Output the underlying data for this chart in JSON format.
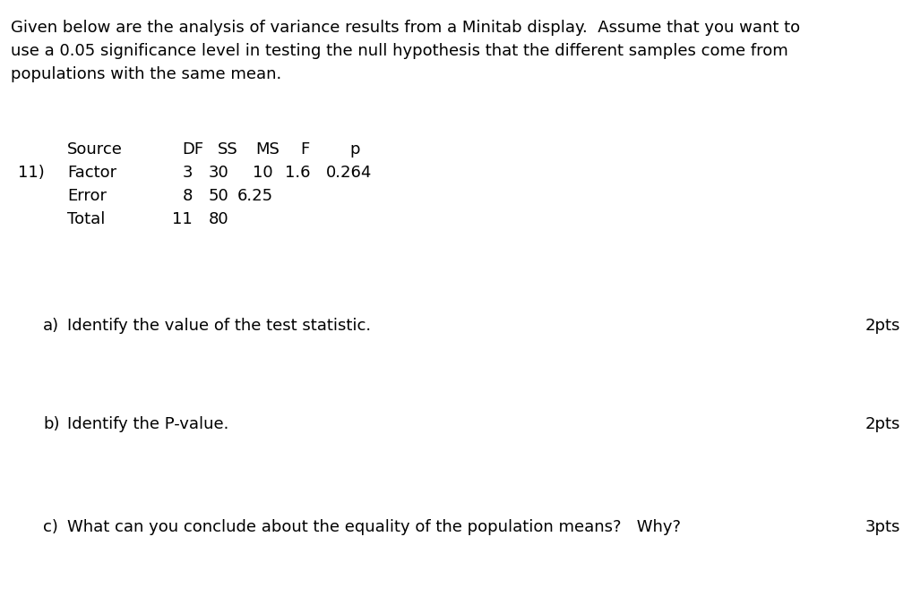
{
  "background_color": "#ffffff",
  "intro_lines": [
    "Given below are the analysis of variance results from a Minitab display.  Assume that you want to",
    "use a 0.05 significance level in testing the null hypothesis that the different samples come from",
    "populations with the same mean."
  ],
  "problem_number": "11)",
  "table_header_labels": [
    "Source",
    "DF",
    "SS",
    "MS",
    "F",
    "p"
  ],
  "table_rows": [
    [
      "Factor",
      "3",
      "30",
      "10",
      "1.6",
      "0.264"
    ],
    [
      "Error",
      "8",
      "50",
      "6.25",
      "",
      ""
    ],
    [
      "Total",
      "11",
      "80",
      "",
      "",
      ""
    ]
  ],
  "questions": [
    {
      "label": "a)",
      "text": "Identify the value of the test statistic.",
      "points": "2pts"
    },
    {
      "label": "b)",
      "text": "Identify the P-value.",
      "points": "2pts"
    },
    {
      "label": "c)",
      "text": "What can you conclude about the equality of the population means?   Why?",
      "points": "3pts"
    }
  ],
  "font_size": 13.0,
  "text_color": "#000000",
  "font_family": "DejaVu Sans"
}
